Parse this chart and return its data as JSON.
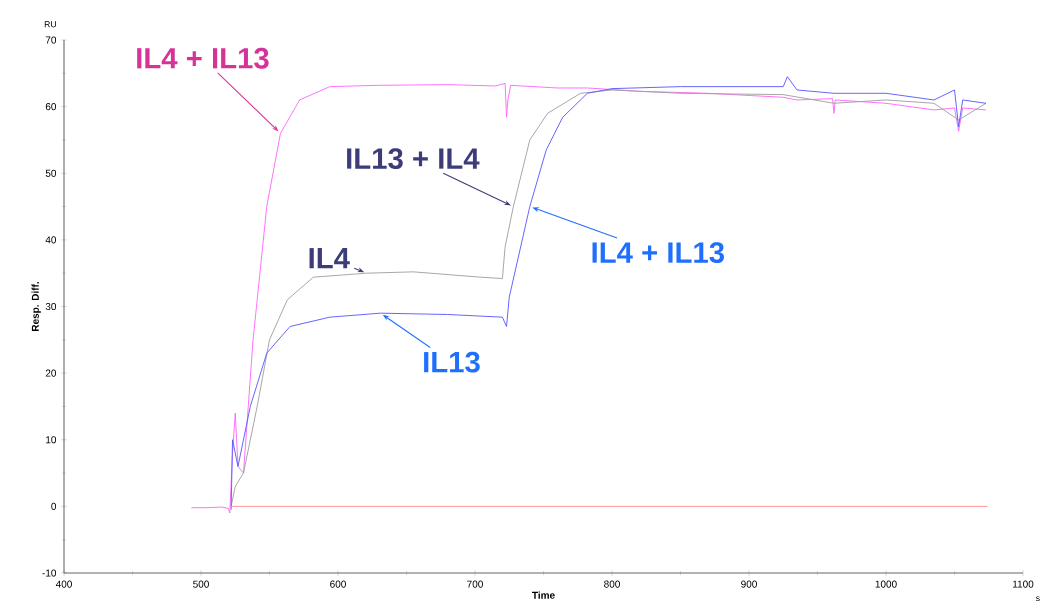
{
  "chart_data": {
    "type": "line",
    "xlabel": "Time",
    "ylabel": "Resp. Diff.",
    "xlim": [
      400,
      1100
    ],
    "ylim": [
      -10,
      70
    ],
    "xticks": [
      400,
      500,
      600,
      700,
      800,
      900,
      1000,
      1100
    ],
    "yticks": [
      -10,
      0,
      10,
      20,
      30,
      40,
      50,
      60,
      70
    ],
    "series": [
      {
        "color": "#ff66ff",
        "x": [
          493,
          505,
          515,
          520,
          521,
          523,
          525,
          527,
          531,
          538,
          548,
          558,
          572,
          594,
          630,
          680,
          715,
          722,
          723,
          724,
          726,
          760,
          782,
          820,
          870,
          925,
          935,
          961,
          962,
          963,
          1000,
          1035,
          1050,
          1053,
          1056,
          1073
        ],
        "values": [
          -0.2,
          -0.2,
          -0.1,
          -0.3,
          -1,
          8,
          14,
          6,
          5,
          25,
          45,
          56,
          61,
          63,
          63.2,
          63.3,
          63.1,
          63.5,
          58.4,
          61,
          63.2,
          62.8,
          62.8,
          62.3,
          62,
          61.4,
          61,
          61.2,
          59,
          61,
          60.5,
          59.5,
          59.8,
          56.3,
          59.8,
          59.5
        ]
      },
      {
        "color": "#a0a0a0",
        "x": [
          522,
          525,
          531,
          541,
          550,
          563,
          582,
          621,
          655,
          704,
          720,
          722,
          728,
          740,
          753,
          777,
          800,
          850,
          925,
          962,
          1000,
          1035,
          1053,
          1073
        ],
        "values": [
          0,
          3,
          5,
          15,
          25,
          31,
          34.4,
          35,
          35.2,
          34.4,
          34.2,
          39,
          45,
          55,
          59,
          62,
          62.5,
          62,
          61.8,
          60.5,
          61,
          60.5,
          58,
          60.5
        ]
      },
      {
        "color": "#5a5aff",
        "x": [
          522,
          523,
          527,
          536,
          548,
          565,
          594,
          631,
          680,
          720,
          723,
          725,
          740,
          752,
          764,
          782,
          800,
          850,
          900,
          925,
          928,
          935,
          962,
          1000,
          1035,
          1050,
          1053,
          1056,
          1073
        ],
        "values": [
          -0.5,
          10,
          6,
          15,
          23,
          27,
          28.4,
          29,
          28.8,
          28.4,
          27,
          31.4,
          45,
          53.5,
          58.4,
          62,
          62.7,
          63,
          63,
          63,
          64.5,
          62.5,
          62,
          62,
          61,
          62.5,
          57,
          61,
          60.5
        ]
      },
      {
        "color": "#ff8c8c",
        "x": [
          522,
          1074
        ],
        "values": [
          0,
          0
        ]
      }
    ],
    "annotations": [
      {
        "text": "IL4 + IL13",
        "x": 558,
        "y": 56
      },
      {
        "text": "IL4",
        "x": 621,
        "y": 35
      },
      {
        "text": "IL13 + IL4",
        "x": 728,
        "y": 45
      },
      {
        "text": "IL13",
        "x": 631,
        "y": 29
      },
      {
        "text": "IL4 + IL13",
        "x": 740,
        "y": 45
      },
      "RU",
      "s"
    ]
  }
}
